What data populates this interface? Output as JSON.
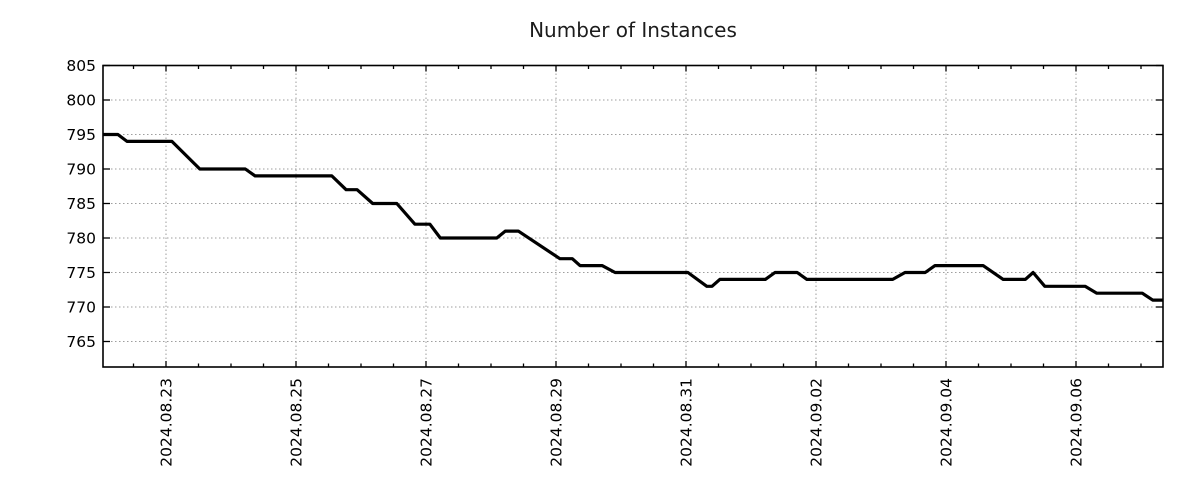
{
  "title": "Number of Instances",
  "chart_data": {
    "type": "line",
    "title": "Number of Instances",
    "xlabel": "",
    "ylabel": "",
    "grid": true,
    "legend_position": "none",
    "ylim": [
      761,
      805
    ],
    "y_axis": {
      "tick_labels": [
        "805",
        "800",
        "795",
        "790",
        "785",
        "780",
        "775",
        "770",
        "765"
      ],
      "tick_values": [
        805,
        800,
        795,
        790,
        785,
        780,
        775,
        770,
        765
      ]
    },
    "x_axis": {
      "unit": "days since 2024-08-22 00:00",
      "range_days": [
        0,
        16.34
      ],
      "major_tick_every_days": 2,
      "minor_tick_every_days": 0.5,
      "labels": [
        {
          "t": 1,
          "text": "2024.08.23"
        },
        {
          "t": 3,
          "text": "2024.08.25"
        },
        {
          "t": 5,
          "text": "2024.08.27"
        },
        {
          "t": 7,
          "text": "2024.08.29"
        },
        {
          "t": 9,
          "text": "2024.08.31"
        },
        {
          "t": 11,
          "text": "2024.09.02"
        },
        {
          "t": 13,
          "text": "2024.09.04"
        },
        {
          "t": 15,
          "text": "2024.09.06"
        }
      ]
    },
    "series": [
      {
        "name": "instances",
        "points": [
          [
            0.03,
            795
          ],
          [
            0.26,
            795
          ],
          [
            0.4,
            794
          ],
          [
            1.09,
            794
          ],
          [
            1.52,
            790
          ],
          [
            2.22,
            790
          ],
          [
            2.37,
            789
          ],
          [
            3.55,
            789
          ],
          [
            3.77,
            787
          ],
          [
            3.94,
            787
          ],
          [
            4.18,
            785
          ],
          [
            4.55,
            785
          ],
          [
            4.83,
            782
          ],
          [
            5.06,
            782
          ],
          [
            5.22,
            780
          ],
          [
            6.09,
            780
          ],
          [
            6.22,
            781
          ],
          [
            6.42,
            781
          ],
          [
            7.06,
            777
          ],
          [
            7.25,
            777
          ],
          [
            7.37,
            776
          ],
          [
            7.71,
            776
          ],
          [
            7.91,
            775
          ],
          [
            9.03,
            775
          ],
          [
            9.32,
            773
          ],
          [
            9.4,
            773
          ],
          [
            9.52,
            774
          ],
          [
            10.22,
            774
          ],
          [
            10.37,
            775
          ],
          [
            10.71,
            775
          ],
          [
            10.86,
            774
          ],
          [
            12.18,
            774
          ],
          [
            12.37,
            775
          ],
          [
            12.68,
            775
          ],
          [
            12.83,
            776
          ],
          [
            13.57,
            776
          ],
          [
            13.88,
            774
          ],
          [
            14.22,
            774
          ],
          [
            14.34,
            775
          ],
          [
            14.52,
            773
          ],
          [
            15.14,
            773
          ],
          [
            15.32,
            772
          ],
          [
            16.02,
            772
          ],
          [
            16.18,
            771
          ],
          [
            16.34,
            771
          ]
        ]
      }
    ],
    "colors": {
      "line": "#000000",
      "grid": "#9e9e9e",
      "frame": "#000000",
      "tick_text": "#000000",
      "title_text": "#1c1c1c",
      "background": "#ffffff"
    }
  }
}
